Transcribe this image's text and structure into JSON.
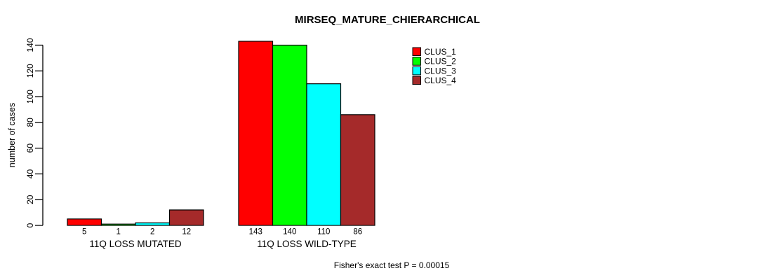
{
  "chart_data": {
    "type": "bar",
    "title": "MIRSEQ_MATURE_CHIERARCHICAL",
    "ylabel": "number of cases",
    "xlabel": "",
    "ylim": [
      0,
      140
    ],
    "yticks": [
      0,
      20,
      40,
      60,
      80,
      100,
      120,
      140
    ],
    "grid": false,
    "legend_position": "top-right",
    "categories": [
      "11Q LOSS MUTATED",
      "11Q LOSS WILD-TYPE"
    ],
    "series": [
      {
        "name": "CLUS_1",
        "color": "#FF0000",
        "values": [
          5,
          143
        ]
      },
      {
        "name": "CLUS_2",
        "color": "#00FF00",
        "values": [
          1,
          140
        ]
      },
      {
        "name": "CLUS_3",
        "color": "#00FFFF",
        "values": [
          2,
          110
        ]
      },
      {
        "name": "CLUS_4",
        "color": "#A52A2A",
        "values": [
          12,
          86
        ]
      }
    ],
    "bar_value_labels_shown": true,
    "annotation": "Fisher's exact test P = 0.00015"
  },
  "colors": {
    "background": "#FFFFFF",
    "axis": "#000000",
    "bar_border": "#000000"
  }
}
